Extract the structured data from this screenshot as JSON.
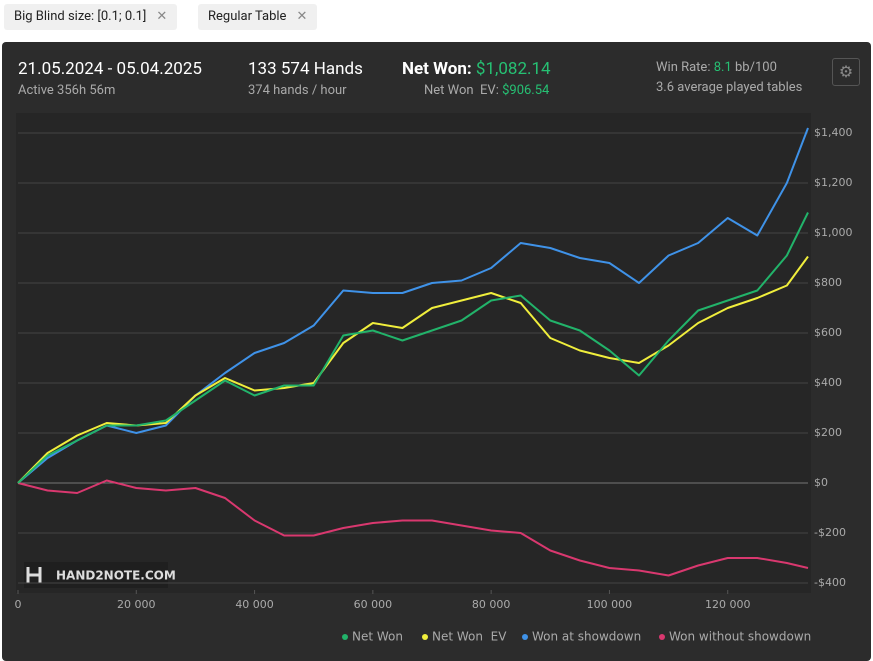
{
  "filters": [
    "Big Blind size: [0.1; 0.1]",
    "Regular Table"
  ],
  "header": {
    "period": "21.05.2024 - 05.04.2025",
    "active": "Active 356h 56m",
    "hands": "133 574 Hands",
    "hands_per_hour": "374 hands / hour",
    "net_won_label": "Net Won:",
    "net_won": "$1,082.14",
    "net_won_ev_label": "Net Won  EV:",
    "net_won_ev": "$906.54",
    "win_rate_label": "Win Rate:",
    "win_rate": "8.1",
    "win_rate_unit": "bb/100",
    "tables": "3.6 average played tables"
  },
  "watermark": "HAND2NOTE.COM",
  "chart_data": {
    "type": "line",
    "x": [
      0,
      5000,
      10000,
      15000,
      20000,
      25000,
      30000,
      35000,
      40000,
      45000,
      50000,
      55000,
      60000,
      65000,
      70000,
      75000,
      80000,
      85000,
      90000,
      95000,
      100000,
      105000,
      110000,
      115000,
      120000,
      125000,
      130000,
      133574
    ],
    "series": [
      {
        "name": "Net Won",
        "color": "#22b36a",
        "values": [
          0,
          110,
          170,
          230,
          230,
          250,
          330,
          410,
          350,
          390,
          390,
          590,
          610,
          570,
          610,
          650,
          730,
          750,
          650,
          610,
          530,
          430,
          570,
          690,
          730,
          770,
          910,
          1082
        ]
      },
      {
        "name": "Net Won  EV",
        "color": "#f0ee3c",
        "values": [
          0,
          120,
          190,
          240,
          230,
          240,
          350,
          420,
          370,
          380,
          400,
          560,
          640,
          620,
          700,
          730,
          760,
          720,
          580,
          530,
          500,
          480,
          550,
          640,
          700,
          740,
          790,
          906
        ]
      },
      {
        "name": "Won at showdown",
        "color": "#3f92e8",
        "values": [
          0,
          100,
          170,
          230,
          200,
          230,
          350,
          440,
          520,
          560,
          630,
          770,
          760,
          760,
          800,
          810,
          860,
          960,
          940,
          900,
          880,
          800,
          910,
          960,
          1060,
          990,
          1200,
          1420
        ]
      },
      {
        "name": "Won without showdown",
        "color": "#d9386f",
        "values": [
          0,
          -30,
          -40,
          10,
          -20,
          -30,
          -20,
          -60,
          -150,
          -210,
          -210,
          -180,
          -160,
          -150,
          -150,
          -170,
          -190,
          -200,
          -270,
          -310,
          -340,
          -350,
          -370,
          -330,
          -300,
          -300,
          -320,
          -340
        ]
      }
    ],
    "xlim": [
      0,
      133574
    ],
    "ylim": [
      -428,
      1472
    ],
    "xticks": [
      0,
      {
        "value": 20000,
        "label": "20 000"
      },
      {
        "value": 40000,
        "label": "40 000"
      },
      {
        "value": 60000,
        "label": "60 000"
      },
      {
        "value": 80000,
        "label": "80 000"
      },
      {
        "value": 100000,
        "label": "100 000"
      },
      {
        "value": 120000,
        "label": "120 000"
      }
    ],
    "yticks": [
      {
        "value": -400,
        "label": "-$400"
      },
      {
        "value": -200,
        "label": "-$200"
      },
      {
        "value": 0,
        "label": "$0"
      },
      {
        "value": 200,
        "label": "$200"
      },
      {
        "value": 400,
        "label": "$400"
      },
      {
        "value": 600,
        "label": "$600"
      },
      {
        "value": 800,
        "label": "$800"
      },
      {
        "value": 1000,
        "label": "$1,000"
      },
      {
        "value": 1200,
        "label": "$1,200"
      },
      {
        "value": 1400,
        "label": "$1,400"
      }
    ],
    "grid": true
  }
}
